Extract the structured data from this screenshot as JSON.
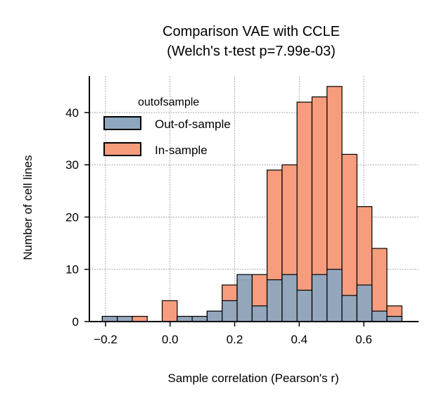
{
  "chart_data": {
    "type": "bar",
    "title": [
      "Comparison VAE with CCLE",
      "(Welch's t-test p=7.99e-03)"
    ],
    "xlabel": "Sample correlation (Pearson's r)",
    "ylabel": "Number of cell lines",
    "xlim": [
      -0.25,
      0.77
    ],
    "ylim": [
      0,
      47
    ],
    "xticks": [
      -0.2,
      0.0,
      0.2,
      0.4,
      0.6
    ],
    "xtick_labels": [
      "−0.2",
      "0.0",
      "0.2",
      "0.4",
      "0.6"
    ],
    "yticks": [
      0,
      10,
      20,
      30,
      40
    ],
    "yticks_labels": [
      "0",
      "10",
      "20",
      "30",
      "40"
    ],
    "grid": true,
    "legend": {
      "title": "outofsample",
      "placement": "top-left",
      "entries": [
        "Out-of-sample",
        "In-sample"
      ]
    },
    "bin_start": -0.21,
    "bin_width": 0.0464,
    "series": [
      {
        "name": "In-sample",
        "color": "#f79d7e",
        "values": [
          1,
          0,
          1,
          0,
          4,
          1,
          1,
          2,
          7,
          8,
          9,
          29,
          30,
          42,
          43,
          45,
          32,
          22,
          14,
          3
        ]
      },
      {
        "name": "Out-of-sample",
        "color": "#8ea7bf",
        "values": [
          1,
          1,
          0,
          0,
          0,
          1,
          1,
          2,
          4,
          9,
          3,
          8,
          9,
          6,
          9,
          10,
          5,
          7,
          2,
          1
        ]
      }
    ]
  }
}
